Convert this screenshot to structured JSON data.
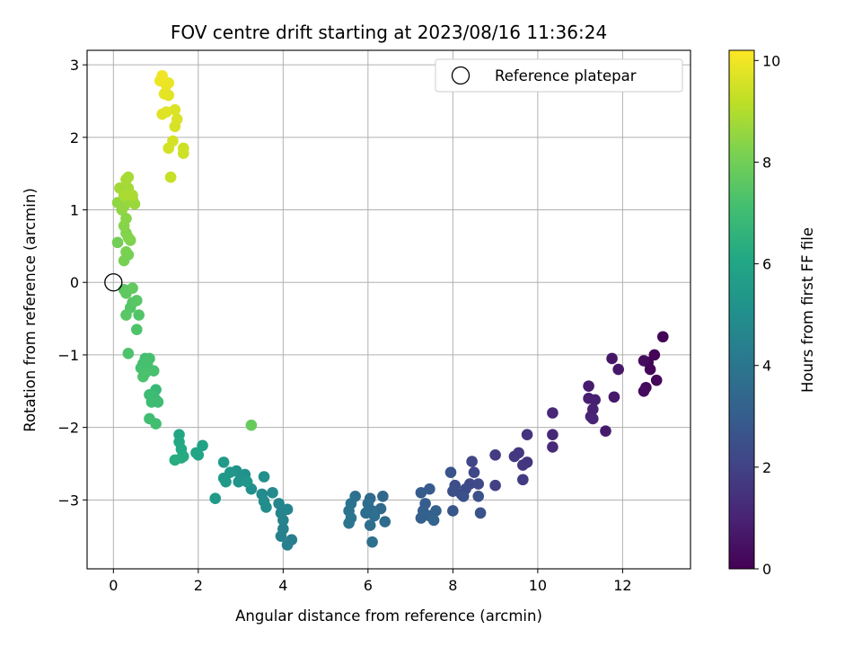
{
  "chart_data": {
    "type": "scatter",
    "title": "FOV centre drift starting at 2023/08/16 11:36:24",
    "xlabel": "Angular distance from reference (arcmin)",
    "ylabel": "Rotation from reference (arcmin)",
    "xlim": [
      -0.62,
      13.6
    ],
    "ylim": [
      -3.95,
      3.2
    ],
    "xticks": [
      0,
      2,
      4,
      6,
      8,
      10,
      12
    ],
    "yticks": [
      -3,
      -2,
      -1,
      0,
      1,
      2,
      3
    ],
    "x_tick_labels": [
      "0",
      "2",
      "4",
      "6",
      "8",
      "10",
      "12"
    ],
    "y_tick_labels": [
      "−3",
      "−2",
      "−1",
      "0",
      "1",
      "2",
      "3"
    ],
    "grid": true,
    "colormap": "viridis",
    "colorbar": {
      "label": "Hours from first FF file",
      "range": [
        0,
        10.2
      ],
      "ticks": [
        0,
        2,
        4,
        6,
        8,
        10
      ],
      "tick_labels": [
        "0",
        "2",
        "4",
        "6",
        "8",
        "10"
      ]
    },
    "legend": {
      "position": "top-right",
      "entries": [
        "Reference platepar"
      ]
    },
    "reference": {
      "x": 0,
      "y": 0,
      "label": "Reference platepar"
    },
    "points": [
      {
        "x": 12.95,
        "y": -0.75,
        "t": 0.05
      },
      {
        "x": 12.75,
        "y": -1.0,
        "t": 0.1
      },
      {
        "x": 12.6,
        "y": -1.1,
        "t": 0.12
      },
      {
        "x": 12.65,
        "y": -1.2,
        "t": 0.15
      },
      {
        "x": 12.8,
        "y": -1.35,
        "t": 0.2
      },
      {
        "x": 12.55,
        "y": -1.45,
        "t": 0.25
      },
      {
        "x": 12.5,
        "y": -1.5,
        "t": 0.3
      },
      {
        "x": 12.5,
        "y": -1.08,
        "t": 0.35
      },
      {
        "x": 11.75,
        "y": -1.05,
        "t": 0.6
      },
      {
        "x": 11.9,
        "y": -1.2,
        "t": 0.65
      },
      {
        "x": 11.8,
        "y": -1.58,
        "t": 0.7
      },
      {
        "x": 11.6,
        "y": -2.05,
        "t": 0.75
      },
      {
        "x": 11.2,
        "y": -1.43,
        "t": 0.8
      },
      {
        "x": 11.2,
        "y": -1.6,
        "t": 0.85
      },
      {
        "x": 11.35,
        "y": -1.62,
        "t": 0.9
      },
      {
        "x": 11.3,
        "y": -1.75,
        "t": 0.95
      },
      {
        "x": 11.25,
        "y": -1.85,
        "t": 1.0
      },
      {
        "x": 11.3,
        "y": -1.88,
        "t": 1.05
      },
      {
        "x": 10.35,
        "y": -1.8,
        "t": 1.1
      },
      {
        "x": 10.35,
        "y": -2.1,
        "t": 1.15
      },
      {
        "x": 10.35,
        "y": -2.27,
        "t": 1.2
      },
      {
        "x": 9.75,
        "y": -2.1,
        "t": 1.5
      },
      {
        "x": 9.75,
        "y": -2.48,
        "t": 1.55
      },
      {
        "x": 9.65,
        "y": -2.52,
        "t": 1.6
      },
      {
        "x": 9.55,
        "y": -2.35,
        "t": 1.65
      },
      {
        "x": 9.45,
        "y": -2.4,
        "t": 1.7
      },
      {
        "x": 9.65,
        "y": -2.72,
        "t": 1.75
      },
      {
        "x": 9.0,
        "y": -2.38,
        "t": 1.8
      },
      {
        "x": 9.0,
        "y": -2.8,
        "t": 1.9
      },
      {
        "x": 8.45,
        "y": -2.47,
        "t": 2.1
      },
      {
        "x": 8.5,
        "y": -2.62,
        "t": 2.15
      },
      {
        "x": 8.4,
        "y": -2.78,
        "t": 2.2
      },
      {
        "x": 8.6,
        "y": -2.78,
        "t": 2.25
      },
      {
        "x": 8.3,
        "y": -2.85,
        "t": 2.3
      },
      {
        "x": 8.2,
        "y": -2.92,
        "t": 2.35
      },
      {
        "x": 8.05,
        "y": -2.8,
        "t": 2.4
      },
      {
        "x": 8.0,
        "y": -2.88,
        "t": 2.45
      },
      {
        "x": 8.25,
        "y": -2.95,
        "t": 2.5
      },
      {
        "x": 8.6,
        "y": -2.95,
        "t": 2.55
      },
      {
        "x": 8.65,
        "y": -3.18,
        "t": 2.6
      },
      {
        "x": 7.95,
        "y": -2.62,
        "t": 2.65
      },
      {
        "x": 8.0,
        "y": -3.15,
        "t": 2.7
      },
      {
        "x": 7.45,
        "y": -2.85,
        "t": 2.9
      },
      {
        "x": 7.25,
        "y": -2.9,
        "t": 2.95
      },
      {
        "x": 7.35,
        "y": -3.05,
        "t": 3.0
      },
      {
        "x": 7.3,
        "y": -3.15,
        "t": 3.05
      },
      {
        "x": 7.25,
        "y": -3.25,
        "t": 3.1
      },
      {
        "x": 7.45,
        "y": -3.22,
        "t": 3.15
      },
      {
        "x": 7.6,
        "y": -3.15,
        "t": 3.2
      },
      {
        "x": 7.55,
        "y": -3.28,
        "t": 3.25
      },
      {
        "x": 6.35,
        "y": -2.95,
        "t": 3.4
      },
      {
        "x": 6.3,
        "y": -3.12,
        "t": 3.45
      },
      {
        "x": 6.4,
        "y": -3.3,
        "t": 3.5
      },
      {
        "x": 6.05,
        "y": -2.98,
        "t": 3.55
      },
      {
        "x": 6.0,
        "y": -3.05,
        "t": 3.6
      },
      {
        "x": 6.1,
        "y": -3.15,
        "t": 3.62
      },
      {
        "x": 5.95,
        "y": -3.18,
        "t": 3.65
      },
      {
        "x": 6.15,
        "y": -3.22,
        "t": 3.68
      },
      {
        "x": 6.05,
        "y": -3.35,
        "t": 3.7
      },
      {
        "x": 6.1,
        "y": -3.58,
        "t": 3.75
      },
      {
        "x": 5.7,
        "y": -2.95,
        "t": 3.8
      },
      {
        "x": 5.6,
        "y": -3.05,
        "t": 3.85
      },
      {
        "x": 5.55,
        "y": -3.15,
        "t": 3.9
      },
      {
        "x": 5.6,
        "y": -3.25,
        "t": 3.95
      },
      {
        "x": 5.55,
        "y": -3.32,
        "t": 4.0
      },
      {
        "x": 4.2,
        "y": -3.55,
        "t": 4.3
      },
      {
        "x": 4.1,
        "y": -3.62,
        "t": 4.35
      },
      {
        "x": 3.95,
        "y": -3.5,
        "t": 4.4
      },
      {
        "x": 4.0,
        "y": -3.4,
        "t": 4.45
      },
      {
        "x": 4.0,
        "y": -3.28,
        "t": 4.5
      },
      {
        "x": 3.95,
        "y": -3.18,
        "t": 4.55
      },
      {
        "x": 4.1,
        "y": -3.13,
        "t": 4.6
      },
      {
        "x": 3.9,
        "y": -3.05,
        "t": 4.65
      },
      {
        "x": 3.75,
        "y": -2.9,
        "t": 4.8
      },
      {
        "x": 3.5,
        "y": -2.92,
        "t": 4.85
      },
      {
        "x": 3.55,
        "y": -3.02,
        "t": 4.9
      },
      {
        "x": 3.6,
        "y": -3.1,
        "t": 4.95
      },
      {
        "x": 3.55,
        "y": -2.68,
        "t": 5.0
      },
      {
        "x": 3.25,
        "y": -2.85,
        "t": 5.05
      },
      {
        "x": 3.1,
        "y": -2.65,
        "t": 5.1
      },
      {
        "x": 3.0,
        "y": -2.7,
        "t": 5.15
      },
      {
        "x": 2.9,
        "y": -2.6,
        "t": 5.2
      },
      {
        "x": 2.95,
        "y": -2.75,
        "t": 5.25
      },
      {
        "x": 3.15,
        "y": -2.75,
        "t": 5.3
      },
      {
        "x": 2.75,
        "y": -2.62,
        "t": 5.35
      },
      {
        "x": 2.6,
        "y": -2.7,
        "t": 5.4
      },
      {
        "x": 2.65,
        "y": -2.75,
        "t": 5.45
      },
      {
        "x": 2.6,
        "y": -2.48,
        "t": 5.5
      },
      {
        "x": 2.4,
        "y": -2.98,
        "t": 5.55
      },
      {
        "x": 2.1,
        "y": -2.25,
        "t": 5.9
      },
      {
        "x": 1.95,
        "y": -2.35,
        "t": 5.95
      },
      {
        "x": 2.0,
        "y": -2.38,
        "t": 6.0
      },
      {
        "x": 1.55,
        "y": -2.1,
        "t": 6.05
      },
      {
        "x": 1.55,
        "y": -2.2,
        "t": 6.1
      },
      {
        "x": 1.6,
        "y": -2.3,
        "t": 6.15
      },
      {
        "x": 1.65,
        "y": -2.4,
        "t": 6.2
      },
      {
        "x": 1.6,
        "y": -2.42,
        "t": 6.25
      },
      {
        "x": 1.45,
        "y": -2.45,
        "t": 6.3
      },
      {
        "x": 1.0,
        "y": -1.48,
        "t": 6.8
      },
      {
        "x": 1.0,
        "y": -1.62,
        "t": 6.85
      },
      {
        "x": 0.95,
        "y": -1.58,
        "t": 6.9
      },
      {
        "x": 0.85,
        "y": -1.55,
        "t": 6.95
      },
      {
        "x": 0.9,
        "y": -1.65,
        "t": 7.0
      },
      {
        "x": 1.05,
        "y": -1.65,
        "t": 7.02
      },
      {
        "x": 0.85,
        "y": -1.88,
        "t": 7.05
      },
      {
        "x": 1.0,
        "y": -1.95,
        "t": 7.08
      },
      {
        "x": 0.75,
        "y": -1.05,
        "t": 7.1
      },
      {
        "x": 0.7,
        "y": -1.12,
        "t": 7.12
      },
      {
        "x": 0.65,
        "y": -1.18,
        "t": 7.15
      },
      {
        "x": 0.8,
        "y": -1.12,
        "t": 7.18
      },
      {
        "x": 0.85,
        "y": -1.05,
        "t": 7.2
      },
      {
        "x": 0.95,
        "y": -1.22,
        "t": 7.22
      },
      {
        "x": 0.75,
        "y": -1.25,
        "t": 7.25
      },
      {
        "x": 0.7,
        "y": -1.3,
        "t": 7.28
      },
      {
        "x": 0.35,
        "y": -0.98,
        "t": 7.3
      },
      {
        "x": 0.55,
        "y": -0.65,
        "t": 7.35
      },
      {
        "x": 0.6,
        "y": -0.45,
        "t": 7.4
      },
      {
        "x": 0.4,
        "y": -0.35,
        "t": 7.45
      },
      {
        "x": 0.45,
        "y": -0.28,
        "t": 7.5
      },
      {
        "x": 0.55,
        "y": -0.25,
        "t": 7.52
      },
      {
        "x": 0.3,
        "y": -0.45,
        "t": 7.55
      },
      {
        "x": 0.25,
        "y": -0.1,
        "t": 7.6
      },
      {
        "x": 0.3,
        "y": -0.15,
        "t": 7.65
      },
      {
        "x": 0.45,
        "y": -0.08,
        "t": 7.7
      },
      {
        "x": 3.25,
        "y": -1.97,
        "t": 7.8
      },
      {
        "x": 0.1,
        "y": 0.55,
        "t": 8.0
      },
      {
        "x": 0.35,
        "y": 0.38,
        "t": 8.05
      },
      {
        "x": 0.25,
        "y": 0.3,
        "t": 8.1
      },
      {
        "x": 0.3,
        "y": 0.42,
        "t": 8.15
      },
      {
        "x": 0.4,
        "y": 0.58,
        "t": 8.2
      },
      {
        "x": 0.3,
        "y": 0.68,
        "t": 8.25
      },
      {
        "x": 0.35,
        "y": 0.62,
        "t": 8.3
      },
      {
        "x": 0.25,
        "y": 0.78,
        "t": 8.35
      },
      {
        "x": 0.3,
        "y": 0.88,
        "t": 8.4
      },
      {
        "x": 0.2,
        "y": 1.0,
        "t": 8.45
      },
      {
        "x": 0.1,
        "y": 1.1,
        "t": 8.5
      },
      {
        "x": 0.25,
        "y": 1.05,
        "t": 8.55
      },
      {
        "x": 0.35,
        "y": 1.12,
        "t": 8.6
      },
      {
        "x": 0.45,
        "y": 1.15,
        "t": 8.62
      },
      {
        "x": 0.5,
        "y": 1.08,
        "t": 8.65
      },
      {
        "x": 0.4,
        "y": 1.22,
        "t": 8.7
      },
      {
        "x": 0.3,
        "y": 1.25,
        "t": 8.72
      },
      {
        "x": 0.15,
        "y": 1.3,
        "t": 8.75
      },
      {
        "x": 0.35,
        "y": 1.3,
        "t": 8.78
      },
      {
        "x": 0.3,
        "y": 1.42,
        "t": 8.8
      },
      {
        "x": 0.35,
        "y": 1.45,
        "t": 8.85
      },
      {
        "x": 0.25,
        "y": 1.2,
        "t": 8.88
      },
      {
        "x": 0.45,
        "y": 1.2,
        "t": 8.9
      },
      {
        "x": 1.35,
        "y": 1.45,
        "t": 9.3
      },
      {
        "x": 1.65,
        "y": 1.85,
        "t": 9.4
      },
      {
        "x": 1.65,
        "y": 1.78,
        "t": 9.45
      },
      {
        "x": 1.3,
        "y": 1.85,
        "t": 9.5
      },
      {
        "x": 1.4,
        "y": 1.95,
        "t": 9.55
      },
      {
        "x": 1.45,
        "y": 2.15,
        "t": 9.6
      },
      {
        "x": 1.5,
        "y": 2.25,
        "t": 9.62
      },
      {
        "x": 1.45,
        "y": 2.38,
        "t": 9.65
      },
      {
        "x": 1.25,
        "y": 2.35,
        "t": 9.7
      },
      {
        "x": 1.15,
        "y": 2.32,
        "t": 9.72
      },
      {
        "x": 1.3,
        "y": 2.58,
        "t": 9.75
      },
      {
        "x": 1.2,
        "y": 2.6,
        "t": 9.8
      },
      {
        "x": 1.25,
        "y": 2.72,
        "t": 9.85
      },
      {
        "x": 1.3,
        "y": 2.75,
        "t": 9.9
      },
      {
        "x": 1.1,
        "y": 2.78,
        "t": 9.95
      },
      {
        "x": 1.15,
        "y": 2.85,
        "t": 10.0
      }
    ]
  }
}
